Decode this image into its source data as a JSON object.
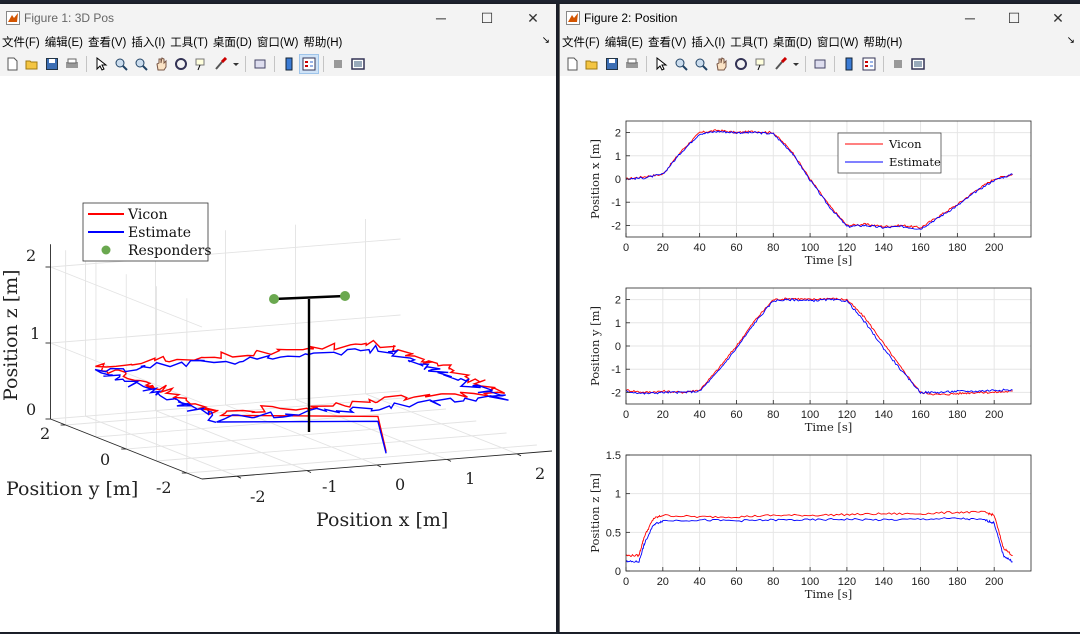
{
  "fig1": {
    "title": "Figure 1: 3D Pos",
    "menu": [
      "文件(F)",
      "编辑(E)",
      "查看(V)",
      "插入(I)",
      "工具(T)",
      "桌面(D)",
      "窗口(W)",
      "帮助(H)"
    ],
    "plot": {
      "xlabel": "Position x [m]",
      "ylabel": "Position y [m]",
      "zlabel": "Position z [m]",
      "xticks": [
        "-2",
        "-1",
        "0",
        "1",
        "2"
      ],
      "yticks": [
        "2",
        "0",
        "-2"
      ],
      "zticks": [
        "2",
        "1",
        "0"
      ],
      "legend": [
        "Vicon",
        "Estimate",
        "Responders"
      ]
    }
  },
  "fig2": {
    "title": "Figure 2: Position",
    "menu": [
      "文件(F)",
      "编辑(E)",
      "查看(V)",
      "插入(I)",
      "工具(T)",
      "桌面(D)",
      "窗口(W)",
      "帮助(H)"
    ],
    "legend": [
      "Vicon",
      "Estimate"
    ]
  },
  "colors": {
    "vicon": "#ff0000",
    "estimate": "#0000ff",
    "responders": "#6aa84f"
  },
  "chart_data": [
    {
      "type": "line",
      "title": "",
      "xlabel": "Time [s]",
      "ylabel": "Position x [m]",
      "xlim": [
        0,
        220
      ],
      "ylim": [
        -2.5,
        2.5
      ],
      "xticks": [
        0,
        20,
        40,
        60,
        80,
        100,
        120,
        140,
        160,
        180,
        200
      ],
      "yticks": [
        2,
        1,
        0,
        -1,
        -2
      ],
      "grid": true,
      "legend": "top-right",
      "series": [
        {
          "name": "Vicon",
          "x": [
            0,
            10,
            20,
            30,
            40,
            50,
            60,
            70,
            80,
            90,
            100,
            110,
            120,
            130,
            140,
            150,
            160,
            170,
            180,
            190,
            200,
            210
          ],
          "y": [
            0,
            0.1,
            0.2,
            1.2,
            2.0,
            2.1,
            2.0,
            2.05,
            2.0,
            1.2,
            0.0,
            -1.1,
            -2.0,
            -1.95,
            -2.05,
            -2.0,
            -2.1,
            -1.6,
            -1.1,
            -0.5,
            0.0,
            0.2
          ]
        },
        {
          "name": "Estimate",
          "x": [
            0,
            10,
            20,
            30,
            40,
            50,
            60,
            70,
            80,
            90,
            100,
            110,
            120,
            130,
            140,
            150,
            160,
            170,
            180,
            190,
            200,
            210
          ],
          "y": [
            0,
            0.05,
            0.2,
            1.15,
            1.95,
            2.05,
            2.0,
            2.0,
            1.95,
            1.15,
            -0.05,
            -1.15,
            -2.05,
            -2.0,
            -2.1,
            -2.05,
            -2.15,
            -1.65,
            -1.15,
            -0.55,
            -0.05,
            0.2
          ]
        }
      ]
    },
    {
      "type": "line",
      "title": "",
      "xlabel": "Time [s]",
      "ylabel": "Position y [m]",
      "xlim": [
        0,
        220
      ],
      "ylim": [
        -2.5,
        2.5
      ],
      "xticks": [
        0,
        20,
        40,
        60,
        80,
        100,
        120,
        140,
        160,
        180,
        200
      ],
      "yticks": [
        2,
        1,
        0,
        -1,
        -2
      ],
      "grid": true,
      "series": [
        {
          "name": "Vicon",
          "x": [
            0,
            10,
            20,
            30,
            40,
            50,
            60,
            70,
            80,
            90,
            100,
            110,
            120,
            130,
            140,
            150,
            160,
            170,
            180,
            190,
            200,
            210
          ],
          "y": [
            -1.9,
            -2.0,
            -1.95,
            -2.0,
            -1.9,
            -1.0,
            0.0,
            1.1,
            2.0,
            2.05,
            2.0,
            2.05,
            2.0,
            1.2,
            0.1,
            -1.0,
            -2.0,
            -2.1,
            -2.05,
            -2.0,
            -2.0,
            -1.95
          ]
        },
        {
          "name": "Estimate",
          "x": [
            0,
            10,
            20,
            30,
            40,
            50,
            60,
            70,
            80,
            90,
            100,
            110,
            120,
            130,
            140,
            150,
            160,
            170,
            180,
            190,
            200,
            210
          ],
          "y": [
            -1.95,
            -2.05,
            -2.0,
            -2.0,
            -1.95,
            -1.1,
            -0.1,
            1.0,
            1.95,
            2.0,
            1.95,
            2.0,
            1.95,
            1.0,
            -0.1,
            -1.1,
            -2.0,
            -2.0,
            -1.95,
            -1.95,
            -1.9,
            -1.9
          ]
        }
      ]
    },
    {
      "type": "line",
      "title": "",
      "xlabel": "Time [s]",
      "ylabel": "Position z [m]",
      "xlim": [
        0,
        220
      ],
      "ylim": [
        0,
        1.5
      ],
      "xticks": [
        0,
        20,
        40,
        60,
        80,
        100,
        120,
        140,
        160,
        180,
        200
      ],
      "yticks": [
        1.5,
        1,
        0.5,
        0
      ],
      "grid": true,
      "series": [
        {
          "name": "Vicon",
          "x": [
            0,
            7,
            10,
            15,
            20,
            40,
            60,
            80,
            100,
            120,
            140,
            160,
            180,
            195,
            200,
            205,
            210
          ],
          "y": [
            0.2,
            0.2,
            0.45,
            0.68,
            0.72,
            0.7,
            0.7,
            0.72,
            0.72,
            0.73,
            0.74,
            0.74,
            0.76,
            0.76,
            0.72,
            0.3,
            0.2
          ]
        },
        {
          "name": "Estimate",
          "x": [
            0,
            7,
            10,
            15,
            20,
            40,
            60,
            80,
            100,
            120,
            140,
            160,
            180,
            195,
            200,
            205,
            210
          ],
          "y": [
            0.12,
            0.12,
            0.35,
            0.6,
            0.65,
            0.66,
            0.65,
            0.66,
            0.66,
            0.67,
            0.66,
            0.67,
            0.68,
            0.66,
            0.62,
            0.2,
            0.12
          ]
        }
      ]
    }
  ]
}
